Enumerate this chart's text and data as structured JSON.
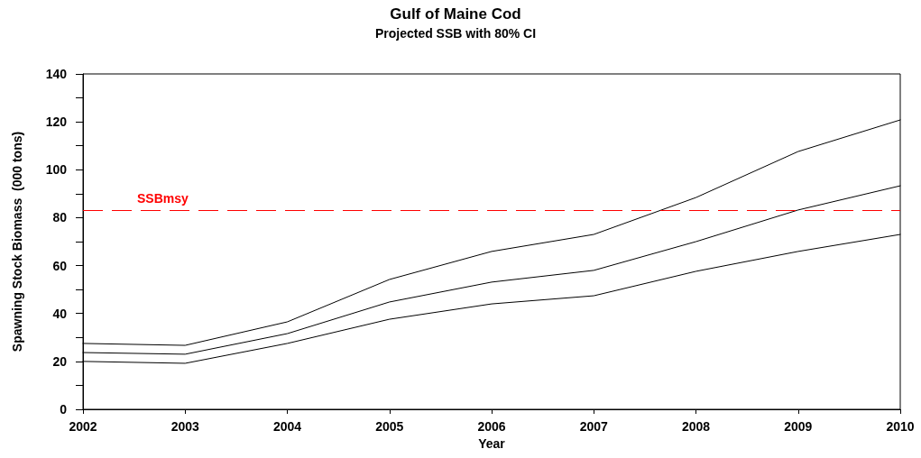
{
  "chart_data": {
    "type": "line",
    "title": "Gulf of Maine Cod",
    "subtitle": "Projected SSB with 80% CI",
    "xlabel": "Year",
    "ylabel": "Spawning Stock Biomass  (000 tons)",
    "x": [
      2002,
      2003,
      2004,
      2005,
      2006,
      2007,
      2008,
      2009,
      2010
    ],
    "series": [
      {
        "color": "#000000",
        "values": [
          27.5,
          26.7,
          36.5,
          54.2,
          65.9,
          73,
          88.4,
          107.6,
          120.8
        ]
      },
      {
        "color": "#000000",
        "values": [
          23.7,
          23,
          31.6,
          44.8,
          53.1,
          58,
          70,
          83.2,
          93.3
        ]
      },
      {
        "color": "#000000",
        "values": [
          20,
          19.2,
          27.5,
          37.6,
          44,
          47.4,
          57.6,
          65.9,
          73
        ]
      }
    ],
    "xlim": [
      2002,
      2010
    ],
    "xticks": [
      2002,
      2003,
      2004,
      2005,
      2006,
      2007,
      2008,
      2009,
      2010
    ],
    "ylim": [
      0,
      140
    ],
    "yticks": [
      0,
      {
        "value": 10,
        "label": null
      },
      20,
      {
        "value": 30,
        "label": null
      },
      40,
      {
        "value": 50,
        "label": null
      },
      60,
      {
        "value": 70,
        "label": null
      },
      80,
      {
        "value": 90,
        "label": null
      },
      100,
      {
        "value": 110,
        "label": null
      },
      120,
      {
        "value": 130,
        "label": null
      },
      140
    ],
    "ref_lines": [
      {
        "axis": "y",
        "value": 83,
        "label": "SSBmsy",
        "color": "#ff0000",
        "line_style": "dashed"
      }
    ],
    "grid": false,
    "marker": "none",
    "line_style": "solid"
  }
}
